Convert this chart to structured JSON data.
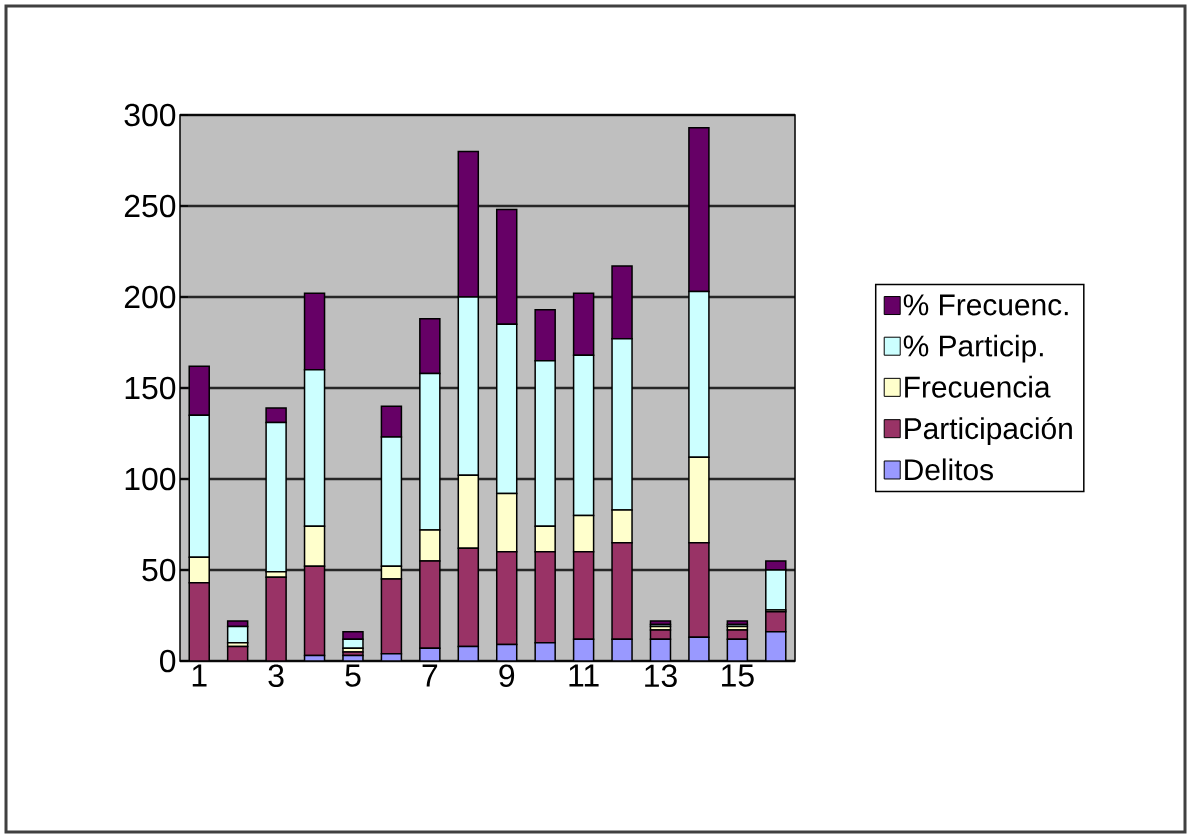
{
  "chart_data": {
    "type": "bar",
    "stacked": true,
    "grid": "y",
    "legend": "right",
    "categories": [
      "1",
      null,
      "3",
      null,
      "5",
      null,
      "7",
      null,
      "9",
      null,
      "11",
      null,
      "13",
      null,
      "15",
      null
    ],
    "ylim": [
      0,
      300
    ],
    "yticks": [
      0,
      50,
      100,
      150,
      200,
      250,
      300
    ],
    "series": [
      {
        "name": "Delitos",
        "color": "#9999ff",
        "values": [
          0,
          0,
          0,
          3,
          3,
          4,
          7,
          8,
          9,
          10,
          12,
          12,
          12,
          13,
          12,
          16
        ]
      },
      {
        "name": "Participación",
        "color": "#993366",
        "values": [
          43,
          8,
          46,
          49,
          2,
          41,
          48,
          54,
          51,
          50,
          48,
          53,
          5,
          52,
          5,
          11
        ]
      },
      {
        "name": "Frecuencia",
        "color": "#ffffcc",
        "values": [
          14,
          2,
          3,
          22,
          2,
          7,
          17,
          40,
          32,
          14,
          20,
          18,
          2,
          47,
          2,
          1
        ]
      },
      {
        "name": "% Particip.",
        "color": "#ccffff",
        "values": [
          78,
          9,
          82,
          86,
          5,
          71,
          86,
          98,
          93,
          91,
          88,
          94,
          1,
          91,
          1,
          22
        ]
      },
      {
        "name": "% Frecuenc.",
        "color": "#660066",
        "values": [
          27,
          3,
          8,
          42,
          4,
          17,
          30,
          80,
          63,
          28,
          34,
          40,
          2,
          90,
          2,
          5
        ]
      }
    ]
  }
}
